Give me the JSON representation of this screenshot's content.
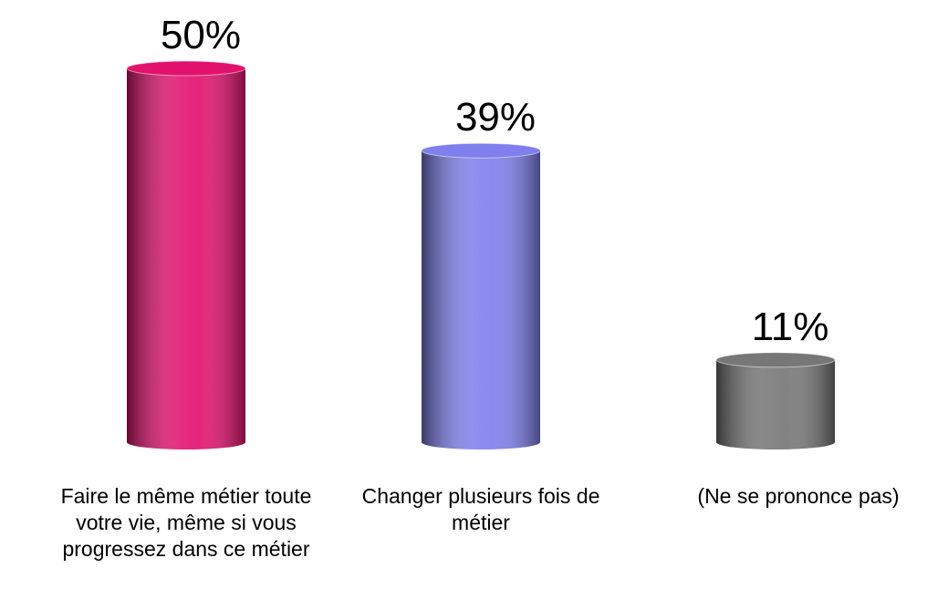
{
  "chart_data": {
    "type": "bar",
    "categories": [
      "Faire le même métier toute votre vie, même si vous progressez dans ce métier",
      "Changer plusieurs fois de métier",
      "(Ne se prononce pas)"
    ],
    "values": [
      50,
      39,
      11
    ],
    "value_labels": [
      "50%",
      "39%",
      "11%"
    ],
    "colors": [
      "#e3116e",
      "#7f7fee",
      "#777777"
    ]
  }
}
